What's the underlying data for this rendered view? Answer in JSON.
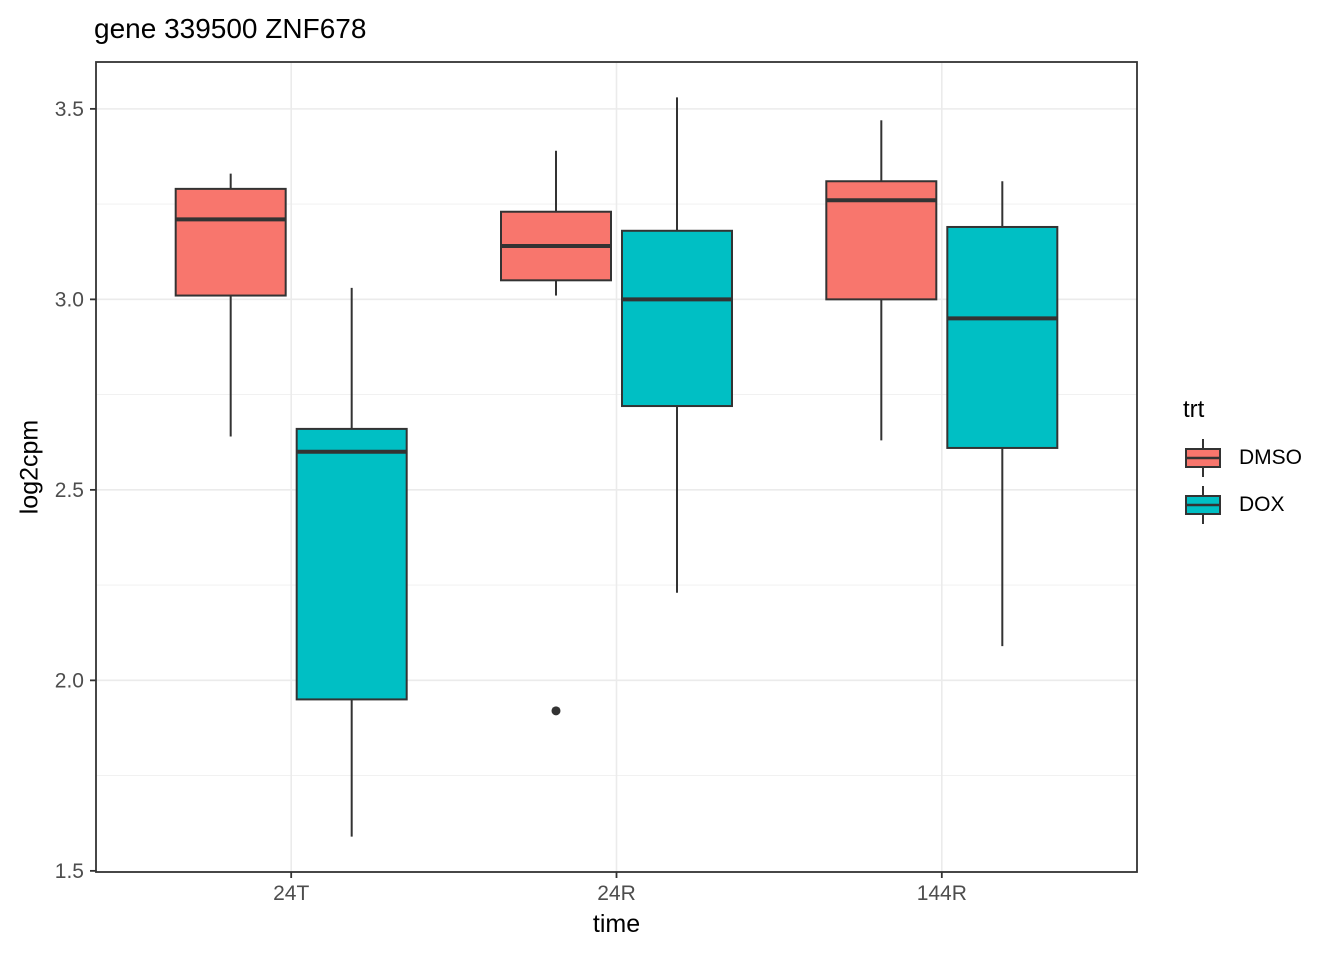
{
  "chart_data": {
    "type": "boxplot",
    "title": "gene 339500 ZNF678",
    "xlabel": "time",
    "ylabel": "log2cpm",
    "categories": [
      "24T",
      "24R",
      "144R"
    ],
    "y_ticks": [
      {
        "label": "1.5",
        "value": 1.5
      },
      {
        "label": "2.0",
        "value": 2.0
      },
      {
        "label": "2.5",
        "value": 2.5
      },
      {
        "label": "3.0",
        "value": 3.0
      },
      {
        "label": "3.5",
        "value": 3.5
      }
    ],
    "ylim": [
      1.497,
      3.623
    ],
    "grid": {
      "major_y": [
        2.0,
        2.5,
        3.0,
        3.5
      ],
      "minor_y": [
        1.75,
        2.25,
        2.75,
        3.25
      ],
      "major_x_at_category_centers": true
    },
    "legend_title": "trt",
    "legend_position": "right",
    "series": [
      {
        "name": "DMSO",
        "color": "#F8766D",
        "boxes": [
          {
            "category": "24T",
            "low": 2.64,
            "q1": 3.01,
            "median": 3.21,
            "q3": 3.29,
            "high": 3.33,
            "outliers": []
          },
          {
            "category": "24R",
            "low": 3.01,
            "q1": 3.05,
            "median": 3.14,
            "q3": 3.23,
            "high": 3.39,
            "outliers": [
              1.92
            ]
          },
          {
            "category": "144R",
            "low": 2.63,
            "q1": 3.0,
            "median": 3.26,
            "q3": 3.31,
            "high": 3.47,
            "outliers": []
          }
        ]
      },
      {
        "name": "DOX",
        "color": "#00BFC4",
        "boxes": [
          {
            "category": "24T",
            "low": 1.59,
            "q1": 1.95,
            "median": 2.6,
            "q3": 2.66,
            "high": 3.03,
            "outliers": []
          },
          {
            "category": "24R",
            "low": 2.23,
            "q1": 2.72,
            "median": 3.0,
            "q3": 3.18,
            "high": 3.53,
            "outliers": []
          },
          {
            "category": "144R",
            "low": 2.09,
            "q1": 2.61,
            "median": 2.95,
            "q3": 3.19,
            "high": 3.31,
            "outliers": []
          }
        ]
      }
    ],
    "style_colors": {
      "box_stroke": "#333333",
      "outlier": "#333333",
      "panel_border": "#333333",
      "grid_major": "#EBEBEB",
      "grid_minor": "#EFEFEF",
      "tick_label": "#4D4D4D"
    }
  }
}
